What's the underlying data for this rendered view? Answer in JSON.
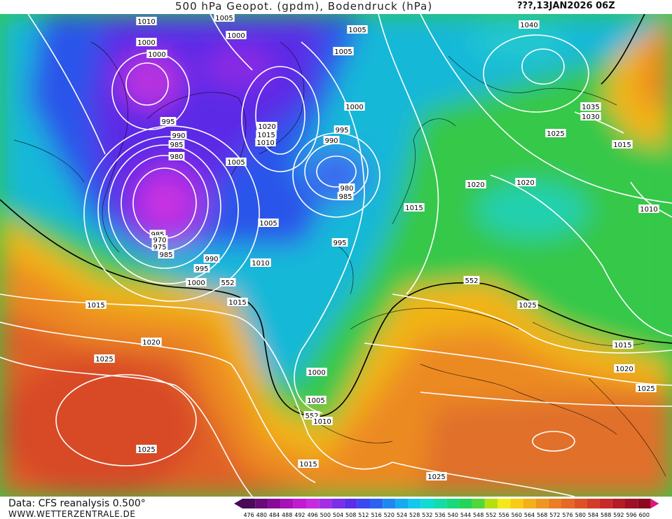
{
  "header": {
    "title": "500 hPa Geopot. (gpdm), Bodendruck (hPa)",
    "run": "???,13JAN2026 06Z"
  },
  "footer": {
    "data_source": "Data: CFS reanalysis 0.500°",
    "website": "WWW.WETTERZENTRALE.DE"
  },
  "legend": {
    "values": [
      "476",
      "480",
      "484",
      "488",
      "492",
      "496",
      "500",
      "504",
      "508",
      "512",
      "516",
      "520",
      "524",
      "528",
      "532",
      "536",
      "540",
      "544",
      "548",
      "552",
      "556",
      "560",
      "564",
      "568",
      "572",
      "576",
      "580",
      "584",
      "588",
      "592",
      "596",
      "600"
    ],
    "colors": [
      "#4a0a58",
      "#680a78",
      "#8a0a98",
      "#a810b8",
      "#c01ad0",
      "#c828e0",
      "#a42ee6",
      "#7b2ee8",
      "#5a2ee8",
      "#3c48f0",
      "#2c62f2",
      "#1f88f0",
      "#16aaf0",
      "#12c8ec",
      "#10dcd4",
      "#14dca8",
      "#18d87c",
      "#22d458",
      "#50d838",
      "#b4e010",
      "#f4e81a",
      "#f8cc14",
      "#f4b018",
      "#f09620",
      "#ec7e22",
      "#e66824",
      "#dc5226",
      "#d23c28",
      "#c82a2a",
      "#b41c26",
      "#a01024",
      "#8c081e"
    ]
  },
  "isobars": {
    "labels": [
      "1010",
      "1005",
      "1000",
      "1005",
      "1005",
      "1040",
      "1000",
      "1000",
      "995",
      "1000",
      "1020",
      "1035",
      "1030",
      "1015",
      "1010",
      "995",
      "990",
      "1025",
      "985",
      "990",
      "1015",
      "980",
      "1005",
      "1020",
      "1020",
      "980",
      "985",
      "1010",
      "1015",
      "985",
      "970",
      "975",
      "985",
      "1005",
      "995",
      "990",
      "995",
      "1010",
      "1000",
      "552",
      "552",
      "1015",
      "1015",
      "1025",
      "1020",
      "1015",
      "1025",
      "1020",
      "1000",
      "1025",
      "1005",
      "552",
      "1010",
      "1015",
      "1025",
      "1025"
    ]
  }
}
